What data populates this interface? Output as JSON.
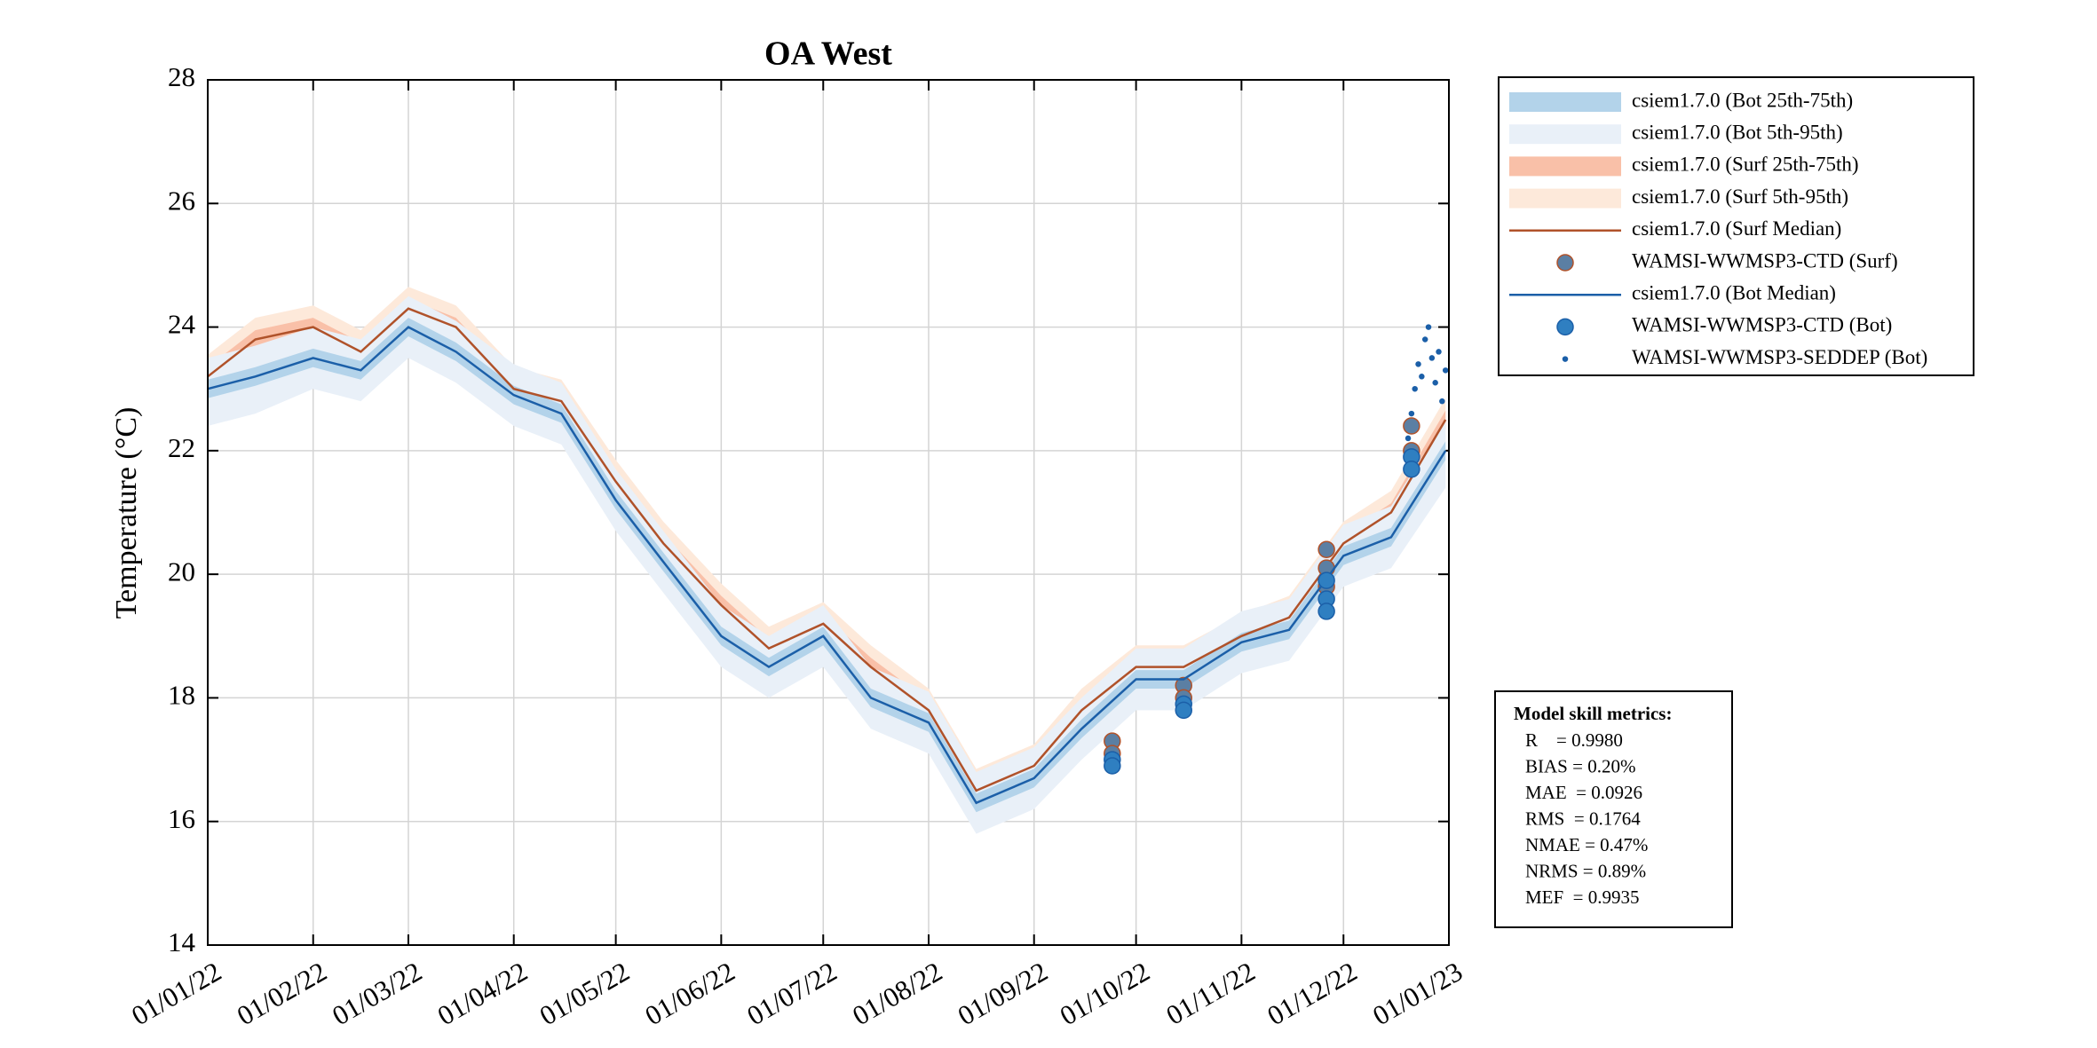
{
  "chart_data": {
    "type": "line",
    "title": "OA West",
    "y_label": "Temperature (°C)",
    "xlim": [
      "2022-01-01",
      "2023-01-01"
    ],
    "xticks": [
      {
        "value": "2022-01-01",
        "label": "01/01/22"
      },
      {
        "value": "2022-02-01",
        "label": "01/02/22"
      },
      {
        "value": "2022-03-01",
        "label": "01/03/22"
      },
      {
        "value": "2022-04-01",
        "label": "01/04/22"
      },
      {
        "value": "2022-05-01",
        "label": "01/05/22"
      },
      {
        "value": "2022-06-01",
        "label": "01/06/22"
      },
      {
        "value": "2022-07-01",
        "label": "01/07/22"
      },
      {
        "value": "2022-08-01",
        "label": "01/08/22"
      },
      {
        "value": "2022-09-01",
        "label": "01/09/22"
      },
      {
        "value": "2022-10-01",
        "label": "01/10/22"
      },
      {
        "value": "2022-11-01",
        "label": "01/11/22"
      },
      {
        "value": "2022-12-01",
        "label": "01/12/22"
      },
      {
        "value": "2023-01-01",
        "label": "01/01/23"
      }
    ],
    "ylim": [
      14,
      28
    ],
    "yticks": [
      14,
      16,
      18,
      20,
      22,
      24,
      26,
      28
    ],
    "grid": true,
    "legend": "outside-right",
    "x": [
      "2022-01-01",
      "2022-01-15",
      "2022-02-01",
      "2022-02-15",
      "2022-03-01",
      "2022-03-15",
      "2022-04-01",
      "2022-04-15",
      "2022-05-01",
      "2022-05-15",
      "2022-06-01",
      "2022-06-15",
      "2022-07-01",
      "2022-07-15",
      "2022-08-01",
      "2022-08-15",
      "2022-09-01",
      "2022-09-15",
      "2022-10-01",
      "2022-10-15",
      "2022-11-01",
      "2022-11-15",
      "2022-12-01",
      "2022-12-15",
      "2022-12-31"
    ],
    "series": [
      {
        "name": "csiem1.7.0 (Bot 25th-75th)",
        "kind": "band",
        "color": "#b3d3ea",
        "low": [
          22.85,
          23.05,
          23.35,
          23.15,
          23.85,
          23.45,
          22.75,
          22.45,
          21.05,
          20.05,
          18.85,
          18.35,
          18.85,
          17.85,
          17.45,
          16.15,
          16.55,
          17.35,
          18.15,
          18.15,
          18.75,
          18.95,
          20.15,
          20.45,
          21.85
        ],
        "high": [
          23.15,
          23.35,
          23.65,
          23.45,
          24.15,
          23.75,
          23.05,
          22.75,
          21.35,
          20.35,
          19.15,
          18.65,
          19.15,
          18.15,
          17.75,
          16.45,
          16.85,
          17.65,
          18.45,
          18.45,
          19.05,
          19.25,
          20.45,
          20.75,
          22.15
        ]
      },
      {
        "name": "csiem1.7.0 (Bot 5th-95th)",
        "kind": "band",
        "color": "#e9f0f8",
        "low": [
          22.4,
          22.6,
          23.0,
          22.8,
          23.5,
          23.1,
          22.4,
          22.1,
          20.7,
          19.7,
          18.5,
          18.0,
          18.5,
          17.5,
          17.1,
          15.8,
          16.2,
          17.0,
          17.8,
          17.8,
          18.4,
          18.6,
          19.8,
          20.1,
          21.4
        ],
        "high": [
          23.5,
          23.7,
          24.0,
          23.8,
          24.5,
          24.1,
          23.4,
          23.1,
          21.7,
          20.7,
          19.5,
          19.0,
          19.5,
          18.5,
          18.1,
          16.8,
          17.2,
          18.0,
          18.8,
          18.8,
          19.4,
          19.6,
          20.8,
          21.1,
          22.5
        ]
      },
      {
        "name": "csiem1.7.0 (Surf 25th-75th)",
        "kind": "band",
        "color": "#f9c0a8",
        "low": [
          23.05,
          23.65,
          23.85,
          23.45,
          24.15,
          23.85,
          22.85,
          22.65,
          21.35,
          20.35,
          19.35,
          18.65,
          19.05,
          18.35,
          17.65,
          16.35,
          16.75,
          17.65,
          18.35,
          18.35,
          18.85,
          19.15,
          20.35,
          20.85,
          22.35
        ],
        "high": [
          23.35,
          23.95,
          24.15,
          23.75,
          24.45,
          24.15,
          23.15,
          22.95,
          21.65,
          20.65,
          19.65,
          18.95,
          19.35,
          18.65,
          17.95,
          16.65,
          17.05,
          17.95,
          18.65,
          18.65,
          19.15,
          19.45,
          20.65,
          21.15,
          22.65
        ]
      },
      {
        "name": "csiem1.7.0 (Surf 5th-95th)",
        "kind": "band",
        "color": "#fde9da",
        "low": [
          22.85,
          23.45,
          23.65,
          23.25,
          23.95,
          23.65,
          22.65,
          22.45,
          21.15,
          20.15,
          19.15,
          18.45,
          18.85,
          18.15,
          17.45,
          16.15,
          16.55,
          17.45,
          18.15,
          18.15,
          18.65,
          18.95,
          20.15,
          20.65,
          22.15
        ],
        "high": [
          23.55,
          24.15,
          24.35,
          23.95,
          24.65,
          24.35,
          23.35,
          23.15,
          21.85,
          20.85,
          19.85,
          19.15,
          19.55,
          18.85,
          18.15,
          16.85,
          17.25,
          18.15,
          18.85,
          18.85,
          19.35,
          19.65,
          20.85,
          21.35,
          22.85
        ]
      },
      {
        "name": "csiem1.7.0 (Surf Median)",
        "kind": "line",
        "color": "#b0522a",
        "values": [
          23.2,
          23.8,
          24.0,
          23.6,
          24.3,
          24.0,
          23.0,
          22.8,
          21.5,
          20.5,
          19.5,
          18.8,
          19.2,
          18.5,
          17.8,
          16.5,
          16.9,
          17.8,
          18.5,
          18.5,
          19.0,
          19.3,
          20.5,
          21.0,
          22.5
        ]
      },
      {
        "name": "WAMSI-WWMSP3-CTD (Surf)",
        "kind": "points",
        "color": "#5b7fa3",
        "edge": "#b0522a",
        "size": 9,
        "x": [
          "2022-09-24",
          "2022-09-24",
          "2022-10-15",
          "2022-10-15",
          "2022-11-26",
          "2022-11-26",
          "2022-11-26",
          "2022-12-21",
          "2022-12-21"
        ],
        "values": [
          17.3,
          17.1,
          18.2,
          18.0,
          20.4,
          20.1,
          19.8,
          22.4,
          22.0
        ]
      },
      {
        "name": "csiem1.7.0 (Bot Median)",
        "kind": "line",
        "color": "#1b5fa8",
        "values": [
          23.0,
          23.2,
          23.5,
          23.3,
          24.0,
          23.6,
          22.9,
          22.6,
          21.2,
          20.2,
          19.0,
          18.5,
          19.0,
          18.0,
          17.6,
          16.3,
          16.7,
          17.5,
          18.3,
          18.3,
          18.9,
          19.1,
          20.3,
          20.6,
          22.0
        ]
      },
      {
        "name": "WAMSI-WWMSP3-CTD (Bot)",
        "kind": "points",
        "color": "#2f7fc1",
        "edge": "#1b5fa8",
        "size": 9,
        "x": [
          "2022-09-24",
          "2022-09-24",
          "2022-10-15",
          "2022-10-15",
          "2022-11-26",
          "2022-11-26",
          "2022-11-26",
          "2022-12-21",
          "2022-12-21"
        ],
        "values": [
          17.0,
          16.9,
          17.9,
          17.8,
          19.6,
          19.4,
          19.9,
          21.9,
          21.7
        ]
      },
      {
        "name": "WAMSI-WWMSP3-SEDDEP (Bot)",
        "kind": "points",
        "color": "#1b5fa8",
        "edge": "#1b5fa8",
        "size": 2.5,
        "x": [
          "2022-12-20",
          "2022-12-21",
          "2022-12-22",
          "2022-12-23",
          "2022-12-24",
          "2022-12-25",
          "2022-12-26",
          "2022-12-27",
          "2022-12-28",
          "2022-12-29",
          "2022-12-30",
          "2022-12-31"
        ],
        "values": [
          22.2,
          22.6,
          23.0,
          23.4,
          23.2,
          23.8,
          24.0,
          23.5,
          23.1,
          23.6,
          22.8,
          23.3
        ]
      }
    ],
    "metrics_title": "Model skill metrics:",
    "metrics": [
      "R    = 0.9980",
      "BIAS = 0.20%",
      "MAE  = 0.0926",
      "RMS  = 0.1764",
      "NMAE = 0.47%",
      "NRMS = 0.89%",
      "MEF  = 0.9935"
    ]
  }
}
